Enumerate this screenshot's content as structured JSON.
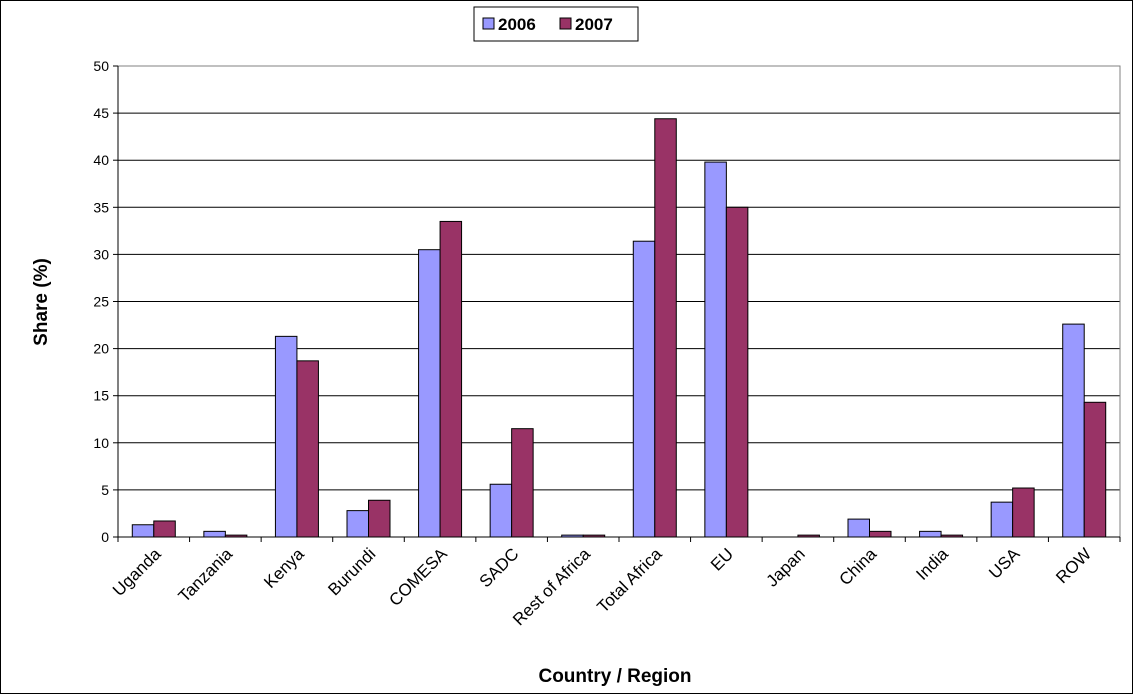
{
  "chart_data": {
    "type": "bar",
    "title": "",
    "xlabel": "Country / Region",
    "ylabel": "Share (%)",
    "ylim": [
      0,
      50
    ],
    "ytick_step": 5,
    "grid": true,
    "legend_position": "top-center",
    "categories": [
      "Uganda",
      "Tanzania",
      "Kenya",
      "Burundi",
      "COMESA",
      "SADC",
      "Rest of Africa",
      "Total Africa",
      "EU",
      "Japan",
      "China",
      "India",
      "USA",
      "ROW"
    ],
    "series": [
      {
        "name": "2006",
        "color": "#9999ff",
        "values": [
          1.3,
          0.6,
          21.3,
          2.8,
          30.5,
          5.6,
          0.2,
          31.4,
          39.8,
          0.0,
          1.9,
          0.6,
          3.7,
          22.6
        ]
      },
      {
        "name": "2007",
        "color": "#993366",
        "values": [
          1.7,
          0.2,
          18.7,
          3.9,
          33.5,
          11.5,
          0.2,
          44.4,
          35.0,
          0.2,
          0.6,
          0.2,
          5.2,
          14.3
        ]
      }
    ]
  }
}
